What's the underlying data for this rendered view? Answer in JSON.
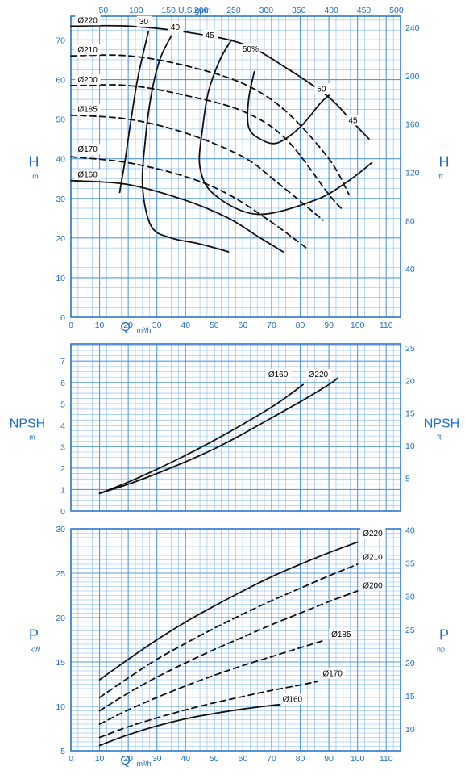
{
  "colors": {
    "grid": "#4d95e0",
    "frame": "#1f6fc8",
    "text": "#1f6fc8",
    "curve": "#111111"
  },
  "chart_data": [
    {
      "type": "line",
      "name": "head",
      "x_axis": {
        "label": "Q",
        "unit": "m³/h",
        "range": [
          0,
          115
        ],
        "ticks": [
          0,
          10,
          20,
          30,
          40,
          50,
          60,
          70,
          80,
          90,
          100,
          110
        ]
      },
      "x2_axis": {
        "label": "U.S.gpm",
        "range": [
          0,
          506.3
        ],
        "ticks": [
          50,
          100,
          150,
          200,
          250,
          300,
          350,
          400,
          450,
          500
        ]
      },
      "y_axis": {
        "label": "H",
        "unit": "m",
        "range": [
          0,
          76
        ],
        "ticks": [
          0,
          10,
          20,
          30,
          40,
          50,
          60,
          70
        ]
      },
      "y2_axis": {
        "label": "H",
        "unit": "ft",
        "range": [
          0,
          249.3
        ],
        "ticks": [
          40,
          80,
          120,
          160,
          200,
          240
        ]
      },
      "grid": true,
      "series": [
        {
          "name": "Ø220",
          "style": "solid",
          "points": [
            [
              0,
              73.5
            ],
            [
              20,
              73.5
            ],
            [
              40,
              72
            ],
            [
              60,
              69
            ],
            [
              75,
              63
            ],
            [
              90,
              55.5
            ],
            [
              98,
              49.5
            ],
            [
              104,
              45
            ]
          ]
        },
        {
          "name": "Ø210",
          "style": "dashed",
          "points": [
            [
              0,
              66
            ],
            [
              20,
              66
            ],
            [
              40,
              63.5
            ],
            [
              60,
              59
            ],
            [
              75,
              52
            ],
            [
              90,
              40
            ],
            [
              97,
              31
            ]
          ]
        },
        {
          "name": "Ø200",
          "style": "dashed",
          "points": [
            [
              0,
              58.5
            ],
            [
              20,
              58.5
            ],
            [
              40,
              56
            ],
            [
              60,
              52
            ],
            [
              75,
              45
            ],
            [
              90,
              31
            ],
            [
              95,
              27
            ]
          ]
        },
        {
          "name": "Ø185",
          "style": "dashed",
          "points": [
            [
              0,
              51
            ],
            [
              20,
              50
            ],
            [
              40,
              46.5
            ],
            [
              60,
              40.5
            ],
            [
              72,
              34
            ],
            [
              88,
              24.5
            ]
          ]
        },
        {
          "name": "Ø170",
          "style": "dashed",
          "points": [
            [
              0,
              40.5
            ],
            [
              20,
              39
            ],
            [
              40,
              35.5
            ],
            [
              55,
              31
            ],
            [
              70,
              24
            ],
            [
              83,
              17
            ]
          ]
        },
        {
          "name": "Ø160",
          "style": "solid",
          "points": [
            [
              0,
              34.5
            ],
            [
              20,
              33.5
            ],
            [
              40,
              29.5
            ],
            [
              55,
              25
            ],
            [
              65,
              20.5
            ],
            [
              74,
              16.5
            ]
          ]
        },
        {
          "name": "30",
          "style": "solid",
          "points": [
            [
              17,
              31.5
            ],
            [
              19,
              40
            ],
            [
              21,
              50
            ],
            [
              23.5,
              61
            ],
            [
              27,
              72
            ]
          ]
        },
        {
          "name": "40",
          "style": "solid",
          "points": [
            [
              55,
              16.5
            ],
            [
              45,
              18.5
            ],
            [
              35,
              20
            ],
            [
              28,
              23
            ],
            [
              25,
              33
            ],
            [
              26,
              45
            ],
            [
              28,
              56
            ],
            [
              31,
              65
            ],
            [
              35,
              71
            ]
          ]
        },
        {
          "name": "45",
          "style": "solid",
          "points": [
            [
              105,
              39
            ],
            [
              96,
              34
            ],
            [
              85,
              29.5
            ],
            [
              65,
              26
            ],
            [
              50,
              31
            ],
            [
              45,
              38
            ],
            [
              46,
              48
            ],
            [
              48,
              57
            ],
            [
              52,
              65
            ],
            [
              56,
              70
            ]
          ]
        },
        {
          "name": "50%",
          "style": "solid",
          "points": [
            [
              64,
              62
            ],
            [
              62,
              55
            ],
            [
              62,
              48
            ],
            [
              66,
              45
            ],
            [
              72,
              44
            ],
            [
              80,
              48
            ],
            [
              87,
              54
            ],
            [
              90,
              56
            ]
          ]
        }
      ],
      "labels": [
        "Ø220",
        "Ø210",
        "Ø200",
        "Ø185",
        "Ø170",
        "Ø160",
        "30",
        "40",
        "45",
        "50%",
        "50",
        "45"
      ]
    },
    {
      "type": "line",
      "name": "npsh",
      "x_axis": {
        "range": [
          0,
          115
        ],
        "ticks": [
          0,
          10,
          20,
          30,
          40,
          50,
          60,
          70,
          80,
          90,
          100,
          110
        ]
      },
      "y_axis": {
        "label": "NPSH",
        "unit": "m",
        "range": [
          0,
          7.8
        ],
        "ticks": [
          0,
          1,
          2,
          3,
          4,
          5,
          6,
          7
        ]
      },
      "y2_axis": {
        "label": "NPSH",
        "unit": "ft",
        "range": [
          0,
          25.6
        ],
        "ticks": [
          5,
          10,
          15,
          20,
          25
        ]
      },
      "grid": true,
      "series": [
        {
          "name": "Ø160",
          "style": "solid",
          "points": [
            [
              10,
              0.82
            ],
            [
              20,
              1.35
            ],
            [
              30,
              1.95
            ],
            [
              40,
              2.6
            ],
            [
              50,
              3.3
            ],
            [
              60,
              4.05
            ],
            [
              70,
              4.85
            ],
            [
              76,
              5.4
            ],
            [
              81,
              5.9
            ]
          ]
        },
        {
          "name": "Ø220",
          "style": "solid",
          "points": [
            [
              10,
              0.82
            ],
            [
              20,
              1.25
            ],
            [
              30,
              1.75
            ],
            [
              40,
              2.3
            ],
            [
              50,
              2.9
            ],
            [
              60,
              3.6
            ],
            [
              70,
              4.35
            ],
            [
              80,
              5.1
            ],
            [
              90,
              5.9
            ],
            [
              93,
              6.2
            ]
          ]
        }
      ]
    },
    {
      "type": "line",
      "name": "power",
      "x_axis": {
        "label": "Q",
        "unit": "m³/h",
        "range": [
          0,
          115
        ],
        "ticks": [
          0,
          10,
          20,
          30,
          40,
          50,
          60,
          70,
          80,
          90,
          100,
          110
        ]
      },
      "y_axis": {
        "label": "P",
        "unit": "kW",
        "range": [
          5,
          30
        ],
        "ticks": [
          5,
          10,
          15,
          20,
          25,
          30
        ]
      },
      "y2_axis": {
        "label": "P",
        "unit": "hp",
        "range": [
          6.7,
          40.2
        ],
        "ticks": [
          10,
          15,
          20,
          25,
          30,
          35,
          40
        ]
      },
      "grid": true,
      "series": [
        {
          "name": "Ø220",
          "style": "solid",
          "points": [
            [
              10,
              13
            ],
            [
              20,
              15.3
            ],
            [
              30,
              17.5
            ],
            [
              40,
              19.5
            ],
            [
              50,
              21.3
            ],
            [
              60,
              23
            ],
            [
              70,
              24.6
            ],
            [
              80,
              26
            ],
            [
              90,
              27.3
            ],
            [
              100,
              28.5
            ]
          ]
        },
        {
          "name": "Ø210",
          "style": "dashed",
          "points": [
            [
              10,
              11
            ],
            [
              20,
              13.2
            ],
            [
              30,
              15.3
            ],
            [
              40,
              17.1
            ],
            [
              50,
              18.8
            ],
            [
              60,
              20.4
            ],
            [
              70,
              21.9
            ],
            [
              80,
              23.3
            ],
            [
              90,
              24.7
            ],
            [
              100,
              26
            ]
          ]
        },
        {
          "name": "Ø200",
          "style": "dashed",
          "points": [
            [
              10,
              9.5
            ],
            [
              20,
              11.5
            ],
            [
              30,
              13.3
            ],
            [
              40,
              14.9
            ],
            [
              50,
              16.4
            ],
            [
              60,
              17.8
            ],
            [
              70,
              19.2
            ],
            [
              80,
              20.5
            ],
            [
              90,
              21.8
            ],
            [
              100,
              23
            ]
          ]
        },
        {
          "name": "Ø185",
          "style": "dashed",
          "points": [
            [
              10,
              8
            ],
            [
              20,
              9.6
            ],
            [
              30,
              11
            ],
            [
              40,
              12.3
            ],
            [
              50,
              13.5
            ],
            [
              60,
              14.6
            ],
            [
              70,
              15.6
            ],
            [
              80,
              16.6
            ],
            [
              88,
              17.4
            ]
          ]
        },
        {
          "name": "Ø170",
          "style": "dashed",
          "points": [
            [
              10,
              6.5
            ],
            [
              20,
              7.7
            ],
            [
              30,
              8.7
            ],
            [
              40,
              9.6
            ],
            [
              50,
              10.4
            ],
            [
              60,
              11.1
            ],
            [
              70,
              11.8
            ],
            [
              80,
              12.4
            ],
            [
              86,
              12.8
            ]
          ]
        },
        {
          "name": "Ø160",
          "style": "solid",
          "points": [
            [
              10,
              5.6
            ],
            [
              20,
              6.8
            ],
            [
              30,
              7.8
            ],
            [
              40,
              8.6
            ],
            [
              50,
              9.2
            ],
            [
              60,
              9.7
            ],
            [
              70,
              10.1
            ],
            [
              73,
              10.2
            ]
          ]
        }
      ]
    }
  ]
}
